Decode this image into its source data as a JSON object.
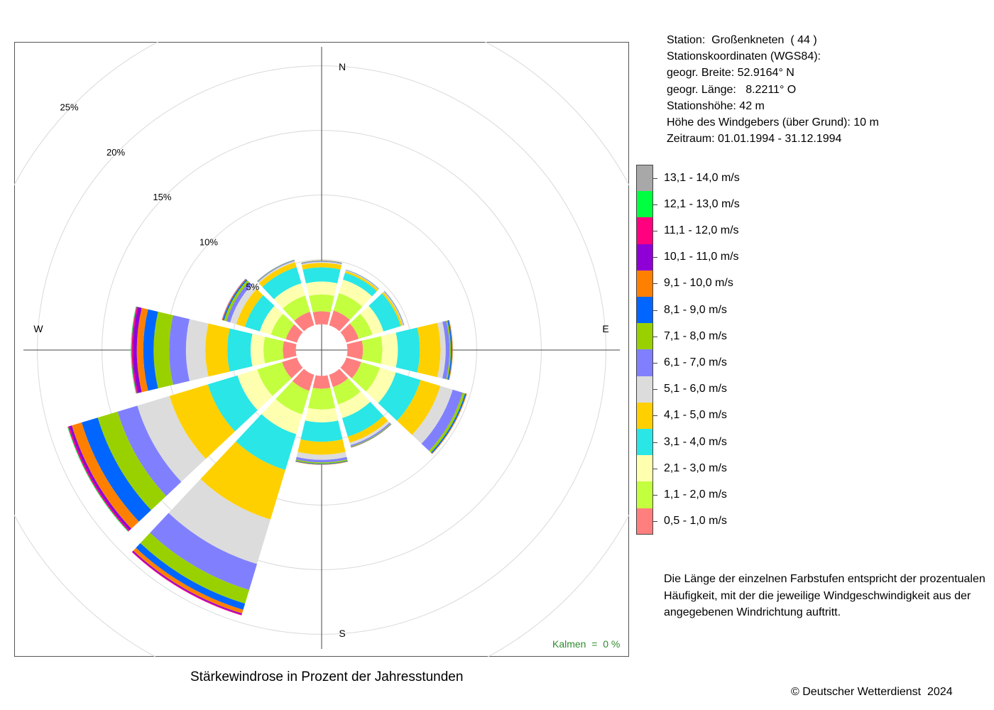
{
  "station": {
    "line1": "Station:  Großenkneten  ( 44 )",
    "line2": "Stationskoordinaten (WGS84):",
    "line3": "geogr. Breite: 52.9164° N",
    "line4": "geogr. Länge:   8.2211° O",
    "line5": "Stationshöhe: 42 m",
    "line6": "Höhe des Windgebers (über Grund): 10 m",
    "line7": "Zeitraum: 01.01.1994 - 31.12.1994"
  },
  "note": {
    "line1": "Die Länge der einzelnen Farbstufen entspricht der prozentualen",
    "line2": "Häufigkeit, mit der die jeweilige Windgeschwindigkeit aus der",
    "line3": "angegebenen Windrichtung auftritt."
  },
  "caption": "Stärkewindrose in Prozent der Jahresstunden",
  "copyright": "© Deutscher Wetterdienst  2024",
  "calm_label": "Kalmen  =  0 %",
  "chart_data": {
    "type": "wind-rose",
    "title": "Stärkewindrose in Prozent der Jahresstunden",
    "unit": "%",
    "center_hole_percent": 2,
    "rlim": [
      0,
      25
    ],
    "ring_ticks": [
      5,
      10,
      15,
      20,
      25
    ],
    "ring_labels": [
      "5%",
      "10%",
      "15%",
      "20%",
      "25%"
    ],
    "compass": {
      "N": "N",
      "E": "E",
      "S": "S",
      "W": "W"
    },
    "calm_percent": 0,
    "grid": true,
    "legend_position": "right",
    "speed_classes": [
      {
        "label": "0,5 - 1,0 m/s",
        "color": "#FF7F7F"
      },
      {
        "label": "1,1 - 2,0 m/s",
        "color": "#C3FF3F"
      },
      {
        "label": "2,1 - 3,0 m/s",
        "color": "#FFFFB0"
      },
      {
        "label": "3,1 - 4,0 m/s",
        "color": "#2AE6E6"
      },
      {
        "label": "4,1 - 5,0 m/s",
        "color": "#FFD000"
      },
      {
        "label": "5,1 - 6,0 m/s",
        "color": "#DCDCDC"
      },
      {
        "label": "6,1 - 7,0 m/s",
        "color": "#8080FF"
      },
      {
        "label": "7,1 - 8,0 m/s",
        "color": "#99D100"
      },
      {
        "label": "8,1 - 9,0 m/s",
        "color": "#0066FF"
      },
      {
        "label": "9,1 - 10,0 m/s",
        "color": "#FF8000"
      },
      {
        "label": "10,1 - 11,0 m/s",
        "color": "#8F00D6"
      },
      {
        "label": "11,1 - 12,0 m/s",
        "color": "#FF007F"
      },
      {
        "label": "12,1 - 13,0 m/s",
        "color": "#00FF40"
      },
      {
        "label": "13,1 - 14,0 m/s",
        "color": "#A8A8A8"
      }
    ],
    "directions_deg": [
      0,
      30,
      60,
      90,
      120,
      150,
      180,
      210,
      240,
      270,
      300,
      330
    ],
    "series": [
      {
        "values": [
          1.0,
          1.3,
          1.0,
          1.1,
          0.35,
          0.08,
          0.05,
          0.03,
          0.02,
          0.01,
          0,
          0,
          0,
          0
        ]
      },
      {
        "values": [
          1.2,
          1.4,
          1.1,
          0.55,
          0.15,
          0.05,
          0.03,
          0.02,
          0.01,
          0,
          0,
          0,
          0,
          0
        ]
      },
      {
        "values": [
          1.0,
          1.1,
          0.9,
          1.4,
          0.15,
          0.06,
          0.04,
          0.02,
          0.01,
          0,
          0,
          0,
          0,
          0
        ]
      },
      {
        "values": [
          1.2,
          1.5,
          1.2,
          1.7,
          1.6,
          0.4,
          0.3,
          0.1,
          0.1,
          0.05,
          0,
          0,
          0,
          0
        ]
      },
      {
        "values": [
          1.2,
          1.5,
          1.3,
          2.0,
          1.6,
          1.0,
          0.8,
          0.2,
          0.1,
          0.05,
          0,
          0,
          0,
          0
        ]
      },
      {
        "values": [
          1.0,
          1.4,
          1.1,
          1.5,
          0.5,
          0.2,
          0.1,
          0.05,
          0.03,
          0.02,
          0,
          0,
          0,
          0
        ]
      },
      {
        "values": [
          1.0,
          1.6,
          1.0,
          1.5,
          1.0,
          0.4,
          0.2,
          0.1,
          0.05,
          0.03,
          0,
          0,
          0,
          0
        ]
      },
      {
        "values": [
          1.3,
          1.9,
          1.6,
          2.9,
          4.0,
          3.6,
          2.1,
          1.1,
          0.5,
          0.3,
          0.1,
          0.05,
          0,
          0
        ]
      },
      {
        "values": [
          1.2,
          2.0,
          1.6,
          2.4,
          3.1,
          2.6,
          1.6,
          1.6,
          1.3,
          0.8,
          0.2,
          0.1,
          0.05,
          0
        ]
      },
      {
        "values": [
          1.0,
          1.5,
          1.0,
          1.8,
          1.7,
          1.5,
          1.3,
          1.2,
          0.8,
          0.5,
          0.3,
          0.1,
          0.05,
          0.02
        ]
      },
      {
        "values": [
          0.9,
          1.2,
          0.9,
          1.2,
          0.7,
          0.5,
          0.3,
          0.2,
          0.1,
          0.05,
          0.02,
          0,
          0,
          0
        ]
      },
      {
        "values": [
          1.1,
          1.3,
          1.0,
          1.3,
          0.4,
          0.1,
          0.05,
          0.03,
          0.02,
          0.01,
          0,
          0,
          0,
          0
        ]
      }
    ]
  }
}
